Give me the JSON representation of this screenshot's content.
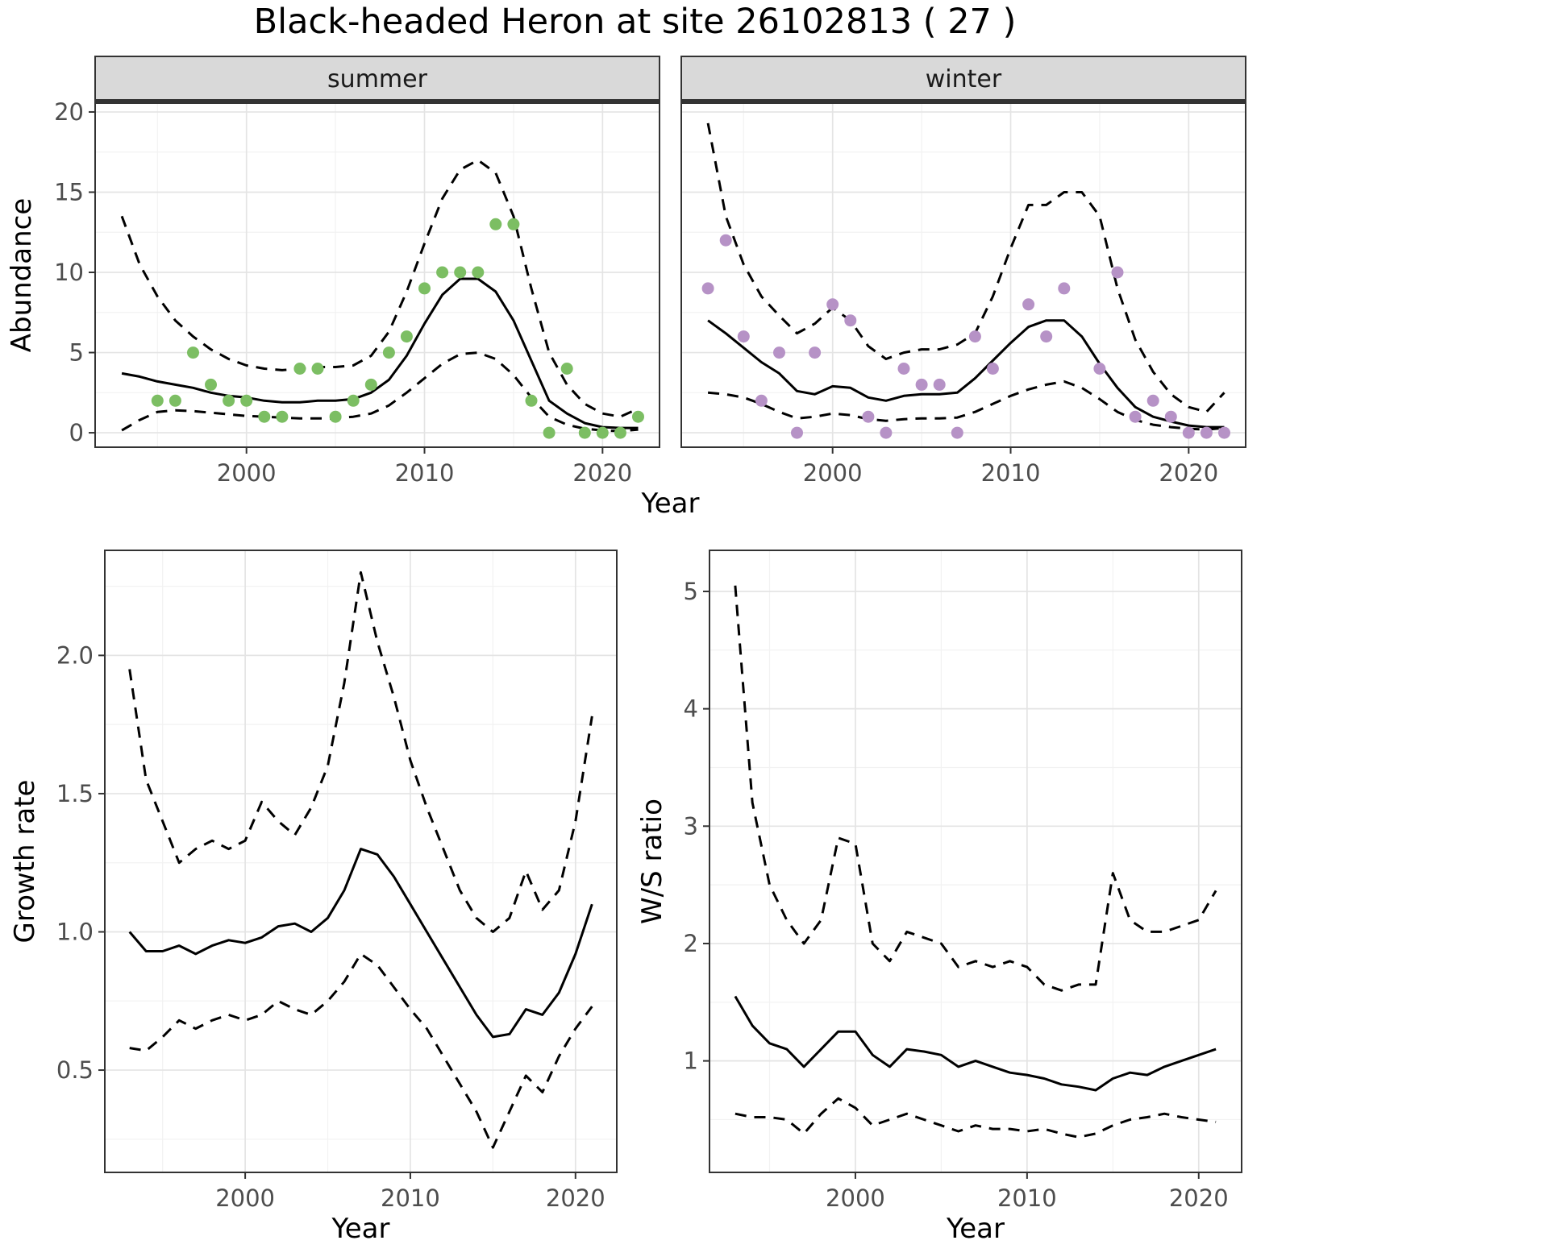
{
  "title": "Black-headed Heron at site 26102813 ( 27 )",
  "theme": {
    "background": "#ffffff",
    "panel_background": "#ffffff",
    "grid_major": "#e4e4e4",
    "grid_minor": "#f2f2f2",
    "panel_border": "#333333",
    "strip_fill": "#d9d9d9",
    "line_color": "#000000",
    "summer_point_color": "#7cbe63",
    "winter_point_color": "#b692c6",
    "tick_label_color": "#4d4d4d"
  },
  "chart_data": [
    {
      "id": "abundance_summer",
      "type": "scatter",
      "facet": "summer",
      "xlabel": "Year",
      "ylabel": "Abundance",
      "xlim": [
        1991.5,
        2023.2
      ],
      "ylim": [
        -0.9,
        20.55
      ],
      "xtick_values": [
        2000,
        2010,
        2020
      ],
      "xtick_labels": [
        "2000",
        "2010",
        "2020"
      ],
      "x_minor": [
        1995,
        2005,
        2015
      ],
      "ytick_values": [
        0,
        5,
        10,
        15,
        20
      ],
      "ytick_labels": [
        "0",
        "5",
        "10",
        "15",
        "20"
      ],
      "y_minor": [
        2.5,
        7.5,
        12.5,
        17.5
      ],
      "x": [
        1993,
        1994,
        1995,
        1996,
        1997,
        1998,
        1999,
        2000,
        2001,
        2002,
        2003,
        2004,
        2005,
        2006,
        2007,
        2008,
        2009,
        2010,
        2011,
        2012,
        2013,
        2014,
        2015,
        2016,
        2017,
        2018,
        2019,
        2020,
        2021,
        2022
      ],
      "series": [
        {
          "name": "fit",
          "style": "solid",
          "y": [
            3.7,
            3.5,
            3.2,
            3.0,
            2.8,
            2.5,
            2.3,
            2.2,
            2.0,
            1.9,
            1.9,
            2.0,
            2.0,
            2.1,
            2.5,
            3.3,
            4.8,
            6.8,
            8.6,
            9.6,
            9.6,
            8.8,
            7.0,
            4.5,
            2.0,
            1.2,
            0.6,
            0.35,
            0.3,
            0.3
          ]
        },
        {
          "name": "upper-ci",
          "style": "dashed",
          "y": [
            13.5,
            10.5,
            8.5,
            7.0,
            6.0,
            5.2,
            4.6,
            4.2,
            4.0,
            3.9,
            4.0,
            4.1,
            4.1,
            4.2,
            4.8,
            6.3,
            8.8,
            11.8,
            14.6,
            16.4,
            17.0,
            16.2,
            13.5,
            9.0,
            5.0,
            3.0,
            1.8,
            1.2,
            1.0,
            1.5
          ]
        },
        {
          "name": "lower-ci",
          "style": "dashed",
          "y": [
            0.15,
            0.8,
            1.3,
            1.4,
            1.35,
            1.25,
            1.15,
            1.05,
            1.0,
            0.95,
            0.9,
            0.9,
            0.9,
            1.0,
            1.2,
            1.7,
            2.5,
            3.4,
            4.3,
            4.9,
            5.0,
            4.6,
            3.6,
            2.2,
            1.0,
            0.5,
            0.25,
            0.15,
            0.1,
            0.2
          ]
        }
      ],
      "points": {
        "color_key": "summer_point_color",
        "x": [
          1995,
          1996,
          1997,
          1998,
          1999,
          2000,
          2001,
          2002,
          2003,
          2004,
          2005,
          2006,
          2007,
          2008,
          2009,
          2010,
          2011,
          2012,
          2013,
          2014,
          2015,
          2016,
          2017,
          2018,
          2019,
          2020,
          2021,
          2022
        ],
        "y": [
          2,
          2,
          5,
          3,
          2,
          2,
          1,
          1,
          4,
          4,
          1,
          2,
          3,
          5,
          6,
          9,
          10,
          10,
          10,
          13,
          13,
          2,
          0,
          4,
          0,
          0,
          0,
          1
        ]
      }
    },
    {
      "id": "abundance_winter",
      "type": "scatter",
      "facet": "winter",
      "xlabel": "",
      "ylabel": "",
      "xlim": [
        1991.5,
        2023.2
      ],
      "ylim": [
        -0.9,
        20.55
      ],
      "xtick_values": [
        2000,
        2010,
        2020
      ],
      "xtick_labels": [
        "2000",
        "2010",
        "2020"
      ],
      "x_minor": [
        1995,
        2005,
        2015
      ],
      "ytick_values": [
        0,
        5,
        10,
        15,
        20
      ],
      "ytick_labels": [
        "0",
        "5",
        "10",
        "15",
        "20"
      ],
      "y_minor": [
        2.5,
        7.5,
        12.5,
        17.5
      ],
      "x": [
        1993,
        1994,
        1995,
        1996,
        1997,
        1998,
        1999,
        2000,
        2001,
        2002,
        2003,
        2004,
        2005,
        2006,
        2007,
        2008,
        2009,
        2010,
        2011,
        2012,
        2013,
        2014,
        2015,
        2016,
        2017,
        2018,
        2019,
        2020,
        2021,
        2022
      ],
      "series": [
        {
          "name": "fit",
          "style": "solid",
          "y": [
            7.0,
            6.2,
            5.3,
            4.4,
            3.7,
            2.6,
            2.4,
            2.9,
            2.8,
            2.2,
            2.0,
            2.3,
            2.4,
            2.4,
            2.5,
            3.4,
            4.5,
            5.6,
            6.6,
            7.0,
            7.0,
            6.0,
            4.3,
            2.8,
            1.6,
            1.0,
            0.7,
            0.45,
            0.35,
            0.35
          ]
        },
        {
          "name": "upper-ci",
          "style": "dashed",
          "y": [
            19.3,
            13.5,
            10.5,
            8.5,
            7.3,
            6.2,
            6.8,
            7.8,
            7.0,
            5.4,
            4.6,
            5.0,
            5.2,
            5.2,
            5.5,
            6.2,
            8.5,
            11.5,
            14.2,
            14.2,
            15.0,
            15.0,
            13.5,
            9.0,
            5.8,
            3.8,
            2.4,
            1.6,
            1.3,
            2.5
          ]
        },
        {
          "name": "lower-ci",
          "style": "dashed",
          "y": [
            2.5,
            2.4,
            2.2,
            1.8,
            1.3,
            0.9,
            1.0,
            1.2,
            1.1,
            0.85,
            0.75,
            0.85,
            0.9,
            0.9,
            0.95,
            1.3,
            1.8,
            2.3,
            2.7,
            3.0,
            3.2,
            2.8,
            2.1,
            1.3,
            0.8,
            0.5,
            0.35,
            0.25,
            0.2,
            0.3
          ]
        }
      ],
      "points": {
        "color_key": "winter_point_color",
        "x": [
          1993,
          1994,
          1995,
          1996,
          1997,
          1998,
          1999,
          2000,
          2001,
          2002,
          2003,
          2004,
          2005,
          2006,
          2007,
          2008,
          2009,
          2011,
          2012,
          2013,
          2015,
          2016,
          2017,
          2018,
          2019,
          2020,
          2021,
          2022
        ],
        "y": [
          9,
          12,
          6,
          2,
          5,
          0,
          5,
          8,
          7,
          1,
          0,
          4,
          3,
          3,
          0,
          6,
          4,
          8,
          6,
          9,
          4,
          10,
          1,
          2,
          1,
          0,
          0,
          0
        ]
      }
    },
    {
      "id": "growth_rate",
      "type": "line",
      "xlabel": "Year",
      "ylabel": "Growth rate",
      "xlim": [
        1991.5,
        2022.5
      ],
      "ylim": [
        0.13,
        2.38
      ],
      "xtick_values": [
        2000,
        2010,
        2020
      ],
      "xtick_labels": [
        "2000",
        "2010",
        "2020"
      ],
      "x_minor": [
        1995,
        2005,
        2015
      ],
      "ytick_values": [
        0.5,
        1.0,
        1.5,
        2.0
      ],
      "ytick_labels": [
        "0.5",
        "1.0",
        "1.5",
        "2.0"
      ],
      "y_minor": [
        0.25,
        0.75,
        1.25,
        1.75,
        2.25
      ],
      "x": [
        1993,
        1994,
        1995,
        1996,
        1997,
        1998,
        1999,
        2000,
        2001,
        2002,
        2003,
        2004,
        2005,
        2006,
        2007,
        2008,
        2009,
        2010,
        2011,
        2012,
        2013,
        2014,
        2015,
        2016,
        2017,
        2018,
        2019,
        2020,
        2021
      ],
      "series": [
        {
          "name": "fit",
          "style": "solid",
          "y": [
            1.0,
            0.93,
            0.93,
            0.95,
            0.92,
            0.95,
            0.97,
            0.96,
            0.98,
            1.02,
            1.03,
            1.0,
            1.05,
            1.15,
            1.3,
            1.28,
            1.2,
            1.1,
            1.0,
            0.9,
            0.8,
            0.7,
            0.62,
            0.63,
            0.72,
            0.7,
            0.78,
            0.92,
            1.1
          ]
        },
        {
          "name": "upper-ci",
          "style": "dashed",
          "y": [
            1.95,
            1.55,
            1.4,
            1.25,
            1.3,
            1.33,
            1.3,
            1.33,
            1.47,
            1.4,
            1.35,
            1.45,
            1.6,
            1.9,
            2.3,
            2.05,
            1.85,
            1.62,
            1.45,
            1.3,
            1.15,
            1.05,
            1.0,
            1.05,
            1.22,
            1.08,
            1.15,
            1.4,
            1.78
          ]
        },
        {
          "name": "lower-ci",
          "style": "dashed",
          "y": [
            0.58,
            0.57,
            0.62,
            0.68,
            0.65,
            0.68,
            0.7,
            0.68,
            0.7,
            0.75,
            0.72,
            0.7,
            0.75,
            0.82,
            0.92,
            0.88,
            0.8,
            0.72,
            0.65,
            0.55,
            0.45,
            0.35,
            0.22,
            0.35,
            0.48,
            0.42,
            0.55,
            0.65,
            0.73
          ]
        }
      ]
    },
    {
      "id": "ws_ratio",
      "type": "line",
      "xlabel": "Year",
      "ylabel": "W/S ratio",
      "xlim": [
        1991.5,
        2022.5
      ],
      "ylim": [
        0.05,
        5.35
      ],
      "xtick_values": [
        2000,
        2010,
        2020
      ],
      "xtick_labels": [
        "2000",
        "2010",
        "2020"
      ],
      "x_minor": [
        1995,
        2005,
        2015
      ],
      "ytick_values": [
        1,
        2,
        3,
        4,
        5
      ],
      "ytick_labels": [
        "1",
        "2",
        "3",
        "4",
        "5"
      ],
      "y_minor": [
        0.5,
        1.5,
        2.5,
        3.5,
        4.5
      ],
      "x": [
        1993,
        1994,
        1995,
        1996,
        1997,
        1998,
        1999,
        2000,
        2001,
        2002,
        2003,
        2004,
        2005,
        2006,
        2007,
        2008,
        2009,
        2010,
        2011,
        2012,
        2013,
        2014,
        2015,
        2016,
        2017,
        2018,
        2019,
        2020,
        2021
      ],
      "series": [
        {
          "name": "fit",
          "style": "solid",
          "y": [
            1.55,
            1.3,
            1.15,
            1.1,
            0.95,
            1.1,
            1.25,
            1.25,
            1.05,
            0.95,
            1.1,
            1.08,
            1.05,
            0.95,
            1.0,
            0.95,
            0.9,
            0.88,
            0.85,
            0.8,
            0.78,
            0.75,
            0.85,
            0.9,
            0.88,
            0.95,
            1.0,
            1.05,
            1.1
          ]
        },
        {
          "name": "upper-ci",
          "style": "dashed",
          "y": [
            5.05,
            3.2,
            2.5,
            2.2,
            2.0,
            2.2,
            2.9,
            2.85,
            2.0,
            1.85,
            2.1,
            2.05,
            2.0,
            1.8,
            1.85,
            1.8,
            1.85,
            1.8,
            1.65,
            1.6,
            1.65,
            1.65,
            2.6,
            2.2,
            2.1,
            2.1,
            2.15,
            2.2,
            2.45
          ]
        },
        {
          "name": "lower-ci",
          "style": "dashed",
          "y": [
            0.55,
            0.52,
            0.52,
            0.5,
            0.38,
            0.55,
            0.68,
            0.6,
            0.45,
            0.5,
            0.55,
            0.5,
            0.45,
            0.4,
            0.45,
            0.42,
            0.42,
            0.4,
            0.42,
            0.38,
            0.35,
            0.38,
            0.45,
            0.5,
            0.52,
            0.55,
            0.52,
            0.5,
            0.48
          ]
        }
      ]
    }
  ]
}
